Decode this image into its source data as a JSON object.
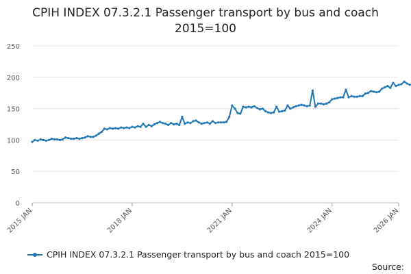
{
  "chart_data": {
    "type": "line",
    "title": "CPIH INDEX 07.3.2.1 Passenger transport by bus and coach\n2015=100",
    "xlabel": "",
    "ylabel": "",
    "ylim": [
      0,
      250
    ],
    "yticks": [
      0,
      50,
      100,
      150,
      200,
      250
    ],
    "xticks": [
      "2015 JAN",
      "2018 JAN",
      "2021 JAN",
      "2024 JAN",
      "2026 JAN"
    ],
    "x_start": "2015 JAN",
    "grid": true,
    "legend_position": "bottom",
    "series": [
      {
        "name": "CPIH INDEX 07.3.2.1 Passenger transport by bus and coach 2015=100",
        "color": "#1f77b4",
        "values": [
          97,
          100,
          99,
          101,
          100,
          99,
          100,
          102,
          101,
          101,
          100,
          101,
          104,
          103,
          102,
          102,
          103,
          102,
          103,
          104,
          106,
          105,
          105,
          107,
          110,
          113,
          118,
          117,
          119,
          118,
          119,
          118,
          120,
          119,
          120,
          119,
          121,
          120,
          122,
          121,
          126,
          121,
          124,
          122,
          125,
          127,
          129,
          127,
          126,
          124,
          127,
          125,
          126,
          124,
          137,
          126,
          128,
          127,
          130,
          131,
          128,
          126,
          127,
          128,
          126,
          130,
          127,
          128,
          128,
          128,
          129,
          137,
          155,
          150,
          143,
          142,
          153,
          152,
          153,
          152,
          154,
          151,
          149,
          150,
          146,
          144,
          143,
          144,
          153,
          145,
          146,
          147,
          155,
          150,
          152,
          154,
          155,
          156,
          155,
          154,
          155,
          179,
          153,
          158,
          158,
          157,
          158,
          160,
          165,
          166,
          167,
          168,
          168,
          180,
          168,
          170,
          169,
          169,
          170,
          170,
          174,
          175,
          178,
          177,
          176,
          177,
          182,
          184,
          186,
          183,
          191,
          186,
          188,
          189,
          193,
          190,
          188,
          189,
          191,
          185
        ]
      }
    ]
  },
  "legend": {
    "label": "CPIH INDEX 07.3.2.1 Passenger transport by bus and coach 2015=100"
  },
  "source": "Source:"
}
